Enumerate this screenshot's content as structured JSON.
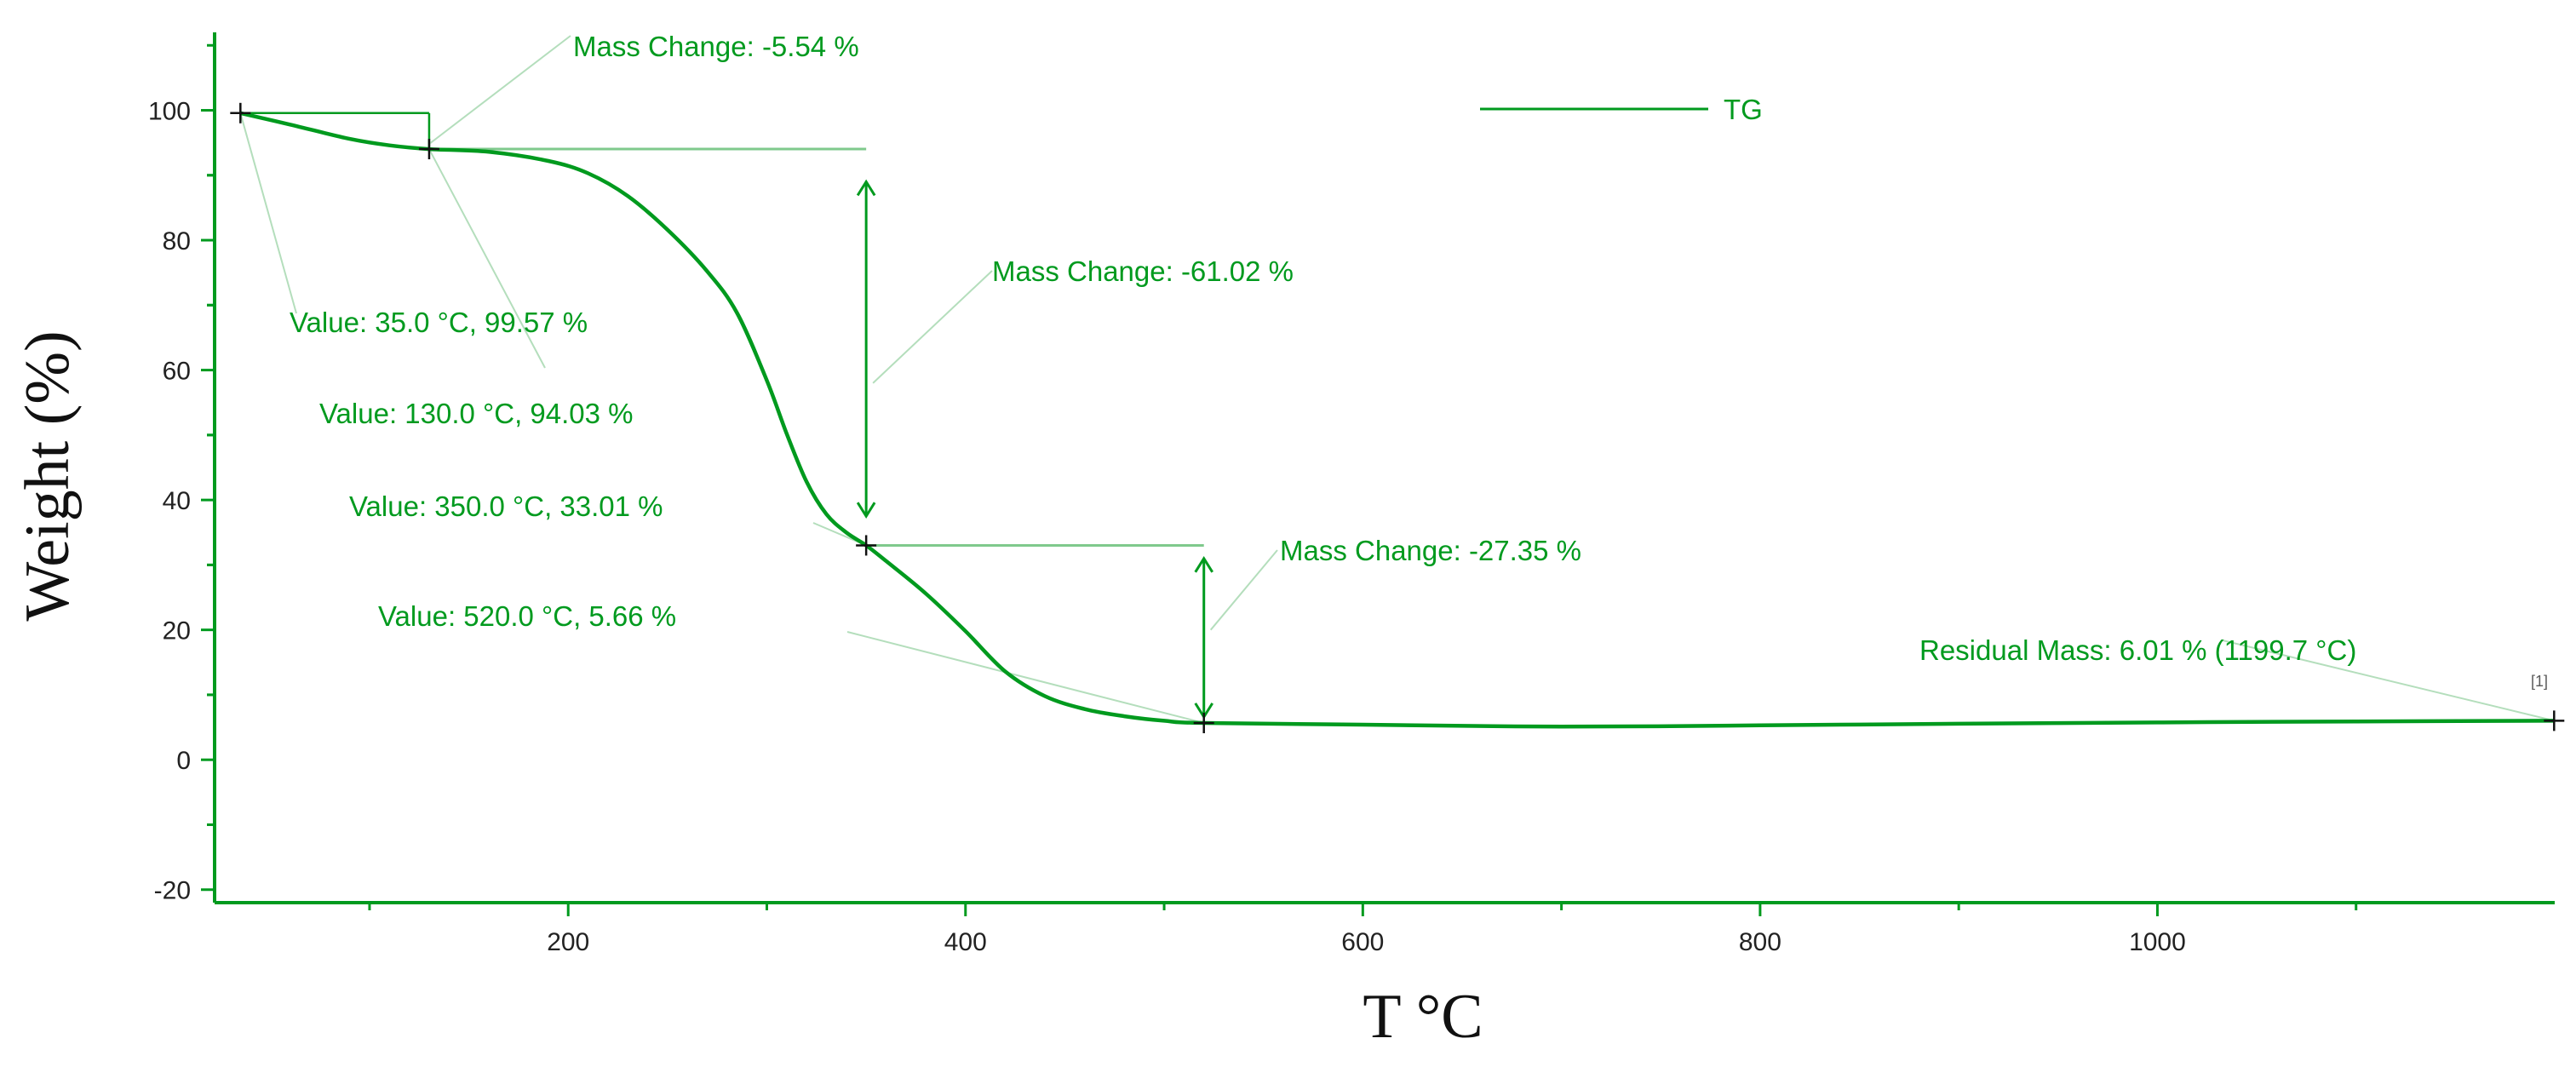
{
  "chart_data": {
    "type": "line",
    "title": "",
    "xlabel": "T °C",
    "ylabel": "Weight (%)",
    "xlim": [
      22,
      1200
    ],
    "ylim": [
      -22,
      112
    ],
    "xticks": [
      200,
      400,
      600,
      800,
      1000
    ],
    "yticks": [
      -20,
      0,
      20,
      40,
      60,
      80,
      100
    ],
    "grid": false,
    "legend": {
      "position": "top-right",
      "entries": [
        {
          "name": "TG",
          "color": "#009A1E"
        }
      ]
    },
    "series": [
      {
        "name": "TG",
        "color": "#009A1E",
        "x": [
          35,
          60,
          90,
          110,
          130,
          160,
          190,
          210,
          230,
          250,
          270,
          285,
          300,
          310,
          320,
          330,
          340,
          350,
          360,
          380,
          400,
          420,
          440,
          460,
          480,
          500,
          520,
          600,
          700,
          800,
          900,
          1000,
          1100,
          1199.7
        ],
        "y": [
          99.57,
          97.8,
          95.6,
          94.6,
          94.03,
          93.6,
          92.2,
          90.3,
          86.8,
          81.6,
          75.2,
          68.8,
          58.4,
          50.2,
          42.8,
          37.8,
          35.0,
          33.01,
          30.6,
          25.6,
          19.8,
          13.6,
          9.8,
          7.8,
          6.7,
          6.0,
          5.66,
          5.4,
          5.1,
          5.3,
          5.55,
          5.75,
          5.9,
          6.01
        ]
      }
    ],
    "markers": [
      {
        "x": 35.0,
        "y": 99.57
      },
      {
        "x": 130.0,
        "y": 94.03
      },
      {
        "x": 350.0,
        "y": 33.01
      },
      {
        "x": 520.0,
        "y": 5.66
      },
      {
        "x": 1199.7,
        "y": 6.01
      }
    ],
    "annotations": {
      "value_labels": [
        "Value: 35.0 °C, 99.57 %",
        "Value: 130.0 °C, 94.03 %",
        "Value: 350.0 °C, 33.01 %",
        "Value: 520.0 °C, 5.66 %"
      ],
      "mass_changes": [
        "Mass Change: -5.54 %",
        "Mass Change: -61.02 %",
        "Mass Change: -27.35 %"
      ],
      "residual": "Residual Mass: 6.01 % (1199.7 °C)",
      "curve_index": "[1]"
    }
  }
}
